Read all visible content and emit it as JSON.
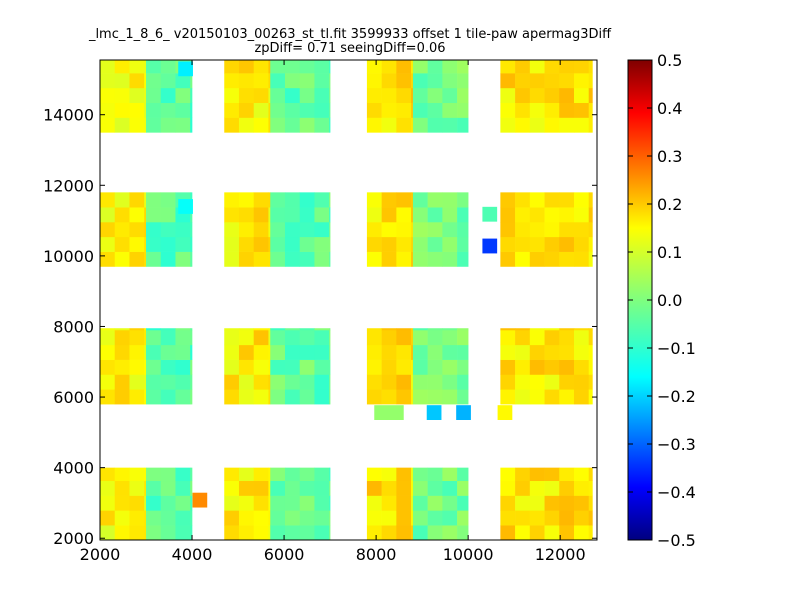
{
  "chart_data": {
    "type": "heatmap",
    "title": "_lmc_1_8_6_ v20150103_00263_st_tl.fit 3599933 offset 1 tile-paw apermag3Diff",
    "subtitle": "zpDiff= 0.71 seeingDiff=0.06",
    "xlim": [
      2000,
      12800
    ],
    "ylim": [
      1950,
      15550
    ],
    "x_ticks": [
      "2000",
      "4000",
      "6000",
      "8000",
      "10000",
      "12000"
    ],
    "y_ticks": [
      "2000",
      "4000",
      "6000",
      "8000",
      "10000",
      "12000",
      "14000"
    ],
    "colorbar": {
      "colormap": "jet",
      "min": -0.5,
      "max": 0.5,
      "ticks": [
        "0.5",
        "0.4",
        "0.3",
        "0.2",
        "0.1",
        "0.0",
        "−0.1",
        "−0.2",
        "−0.3",
        "−0.4",
        "−0.5"
      ]
    },
    "cell_size": [
      320,
      420
    ],
    "base_values": {
      "by_x_band": [
        {
          "x": [
            2000,
            3000
          ],
          "value": 0.13
        },
        {
          "x": [
            3000,
            4000
          ],
          "value": -0.04
        },
        {
          "x": [
            4700,
            5700
          ],
          "value": 0.14
        },
        {
          "x": [
            5700,
            7000
          ],
          "value": -0.03
        },
        {
          "x": [
            7800,
            8800
          ],
          "value": 0.15
        },
        {
          "x": [
            8800,
            10000
          ],
          "value": -0.01
        },
        {
          "x": [
            10700,
            12700
          ],
          "value": 0.15
        }
      ],
      "y_bands": [
        [
          1950,
          4000
        ],
        [
          5800,
          7950
        ],
        [
          9700,
          11800
        ],
        [
          13500,
          15550
        ]
      ]
    },
    "special_cells": [
      {
        "x": 3860,
        "y": 15300,
        "value": -0.14
      },
      {
        "x": 3860,
        "y": 11400,
        "value": -0.12
      },
      {
        "x": 4170,
        "y": 3080,
        "value": 0.24
      },
      {
        "x": 10470,
        "y": 10280,
        "value": -0.32
      },
      {
        "x": 10470,
        "y": 11180,
        "value": -0.05
      },
      {
        "x": 9260,
        "y": 5560,
        "value": -0.18
      },
      {
        "x": 9900,
        "y": 5560,
        "value": -0.2
      },
      {
        "x": 8120,
        "y": 5560,
        "value": 0.02
      },
      {
        "x": 8440,
        "y": 5560,
        "value": 0.02
      },
      {
        "x": 10800,
        "y": 5560,
        "value": 0.13
      }
    ]
  }
}
